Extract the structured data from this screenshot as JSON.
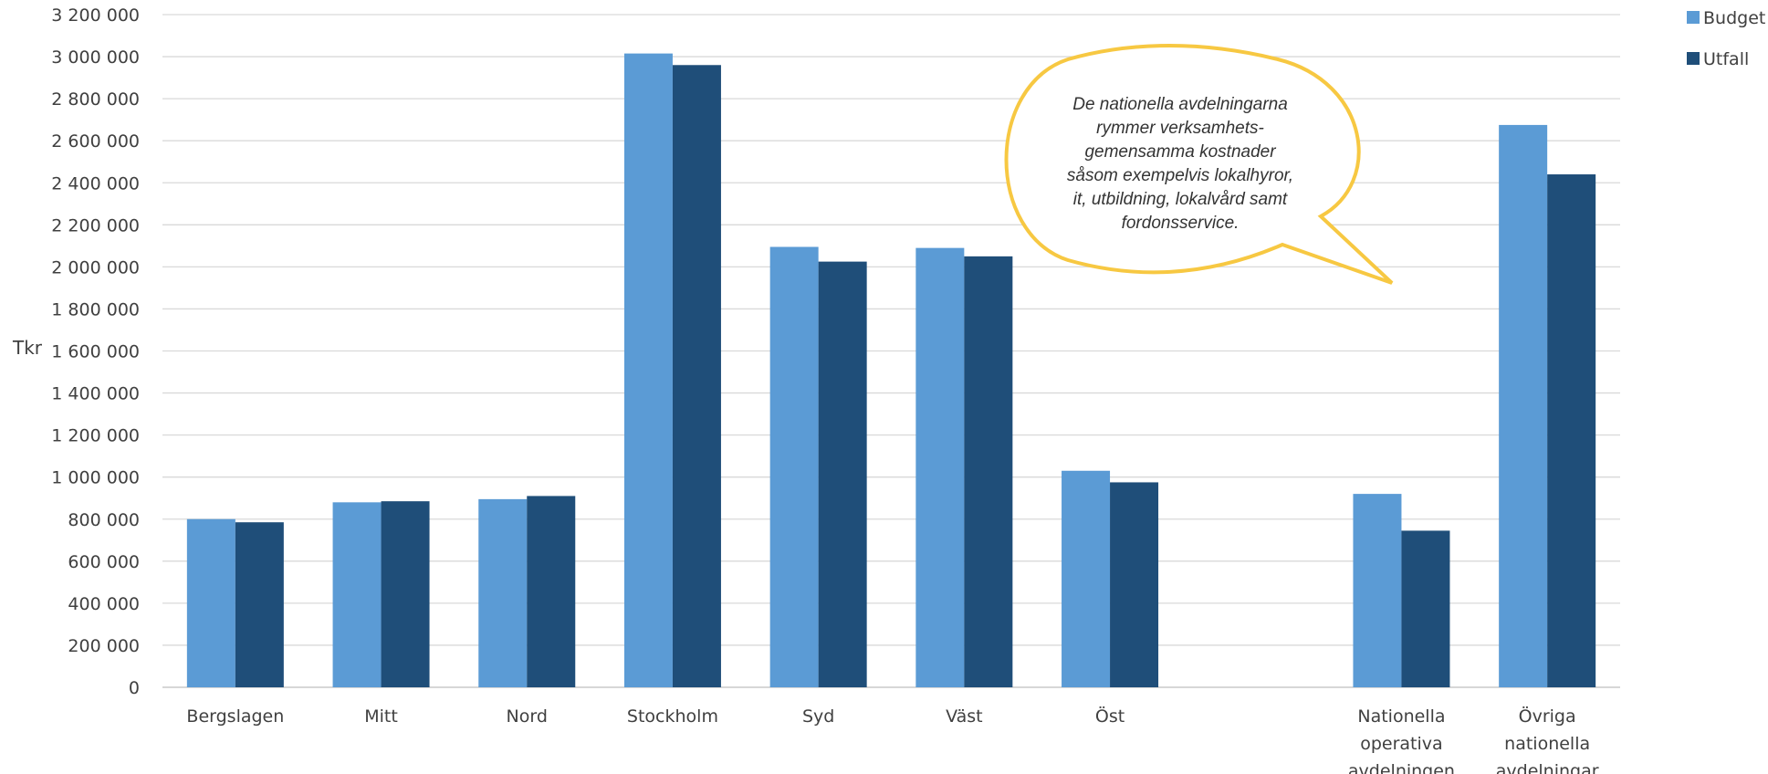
{
  "chart_data": {
    "type": "bar",
    "title": "",
    "xlabel": "",
    "ylabel": "Tkr",
    "ylim": [
      0,
      3200000
    ],
    "ytick_step": 200000,
    "yticks": [
      "0",
      "200 000",
      "400 000",
      "600 000",
      "800 000",
      "1 000 000",
      "1 200 000",
      "1 400 000",
      "1 600 000",
      "1 800 000",
      "2 000 000",
      "2 200 000",
      "2 400 000",
      "2 600 000",
      "2 800 000",
      "3 000 000",
      "3 200 000"
    ],
    "grid": true,
    "legend_position": "top-right",
    "categories": [
      [
        "Bergslagen"
      ],
      [
        "Mitt"
      ],
      [
        "Nord"
      ],
      [
        "Stockholm"
      ],
      [
        "Syd"
      ],
      [
        "Väst"
      ],
      [
        "Öst"
      ],
      [
        ""
      ],
      [
        "Nationella",
        "operativa",
        "avdelningen"
      ],
      [
        "Övriga",
        "nationella",
        "avdelningar"
      ]
    ],
    "series": [
      {
        "name": "Budget",
        "color": "#5b9bd5",
        "values": [
          800000,
          880000,
          895000,
          3015000,
          2095000,
          2090000,
          1030000,
          null,
          920000,
          2675000
        ]
      },
      {
        "name": "Utfall",
        "color": "#1f4e79",
        "values": [
          785000,
          885000,
          910000,
          2960000,
          2025000,
          2050000,
          975000,
          null,
          745000,
          2440000
        ]
      }
    ],
    "annotation": {
      "lines": [
        "De nationella avdelningarna",
        "rymmer verksamhets-",
        "gemensamma kostnader",
        "såsom exempelvis lokalhyror,",
        "it, utbildning, lokalvård samt",
        "fordonsservice."
      ],
      "border_color": "#f7c842"
    }
  }
}
